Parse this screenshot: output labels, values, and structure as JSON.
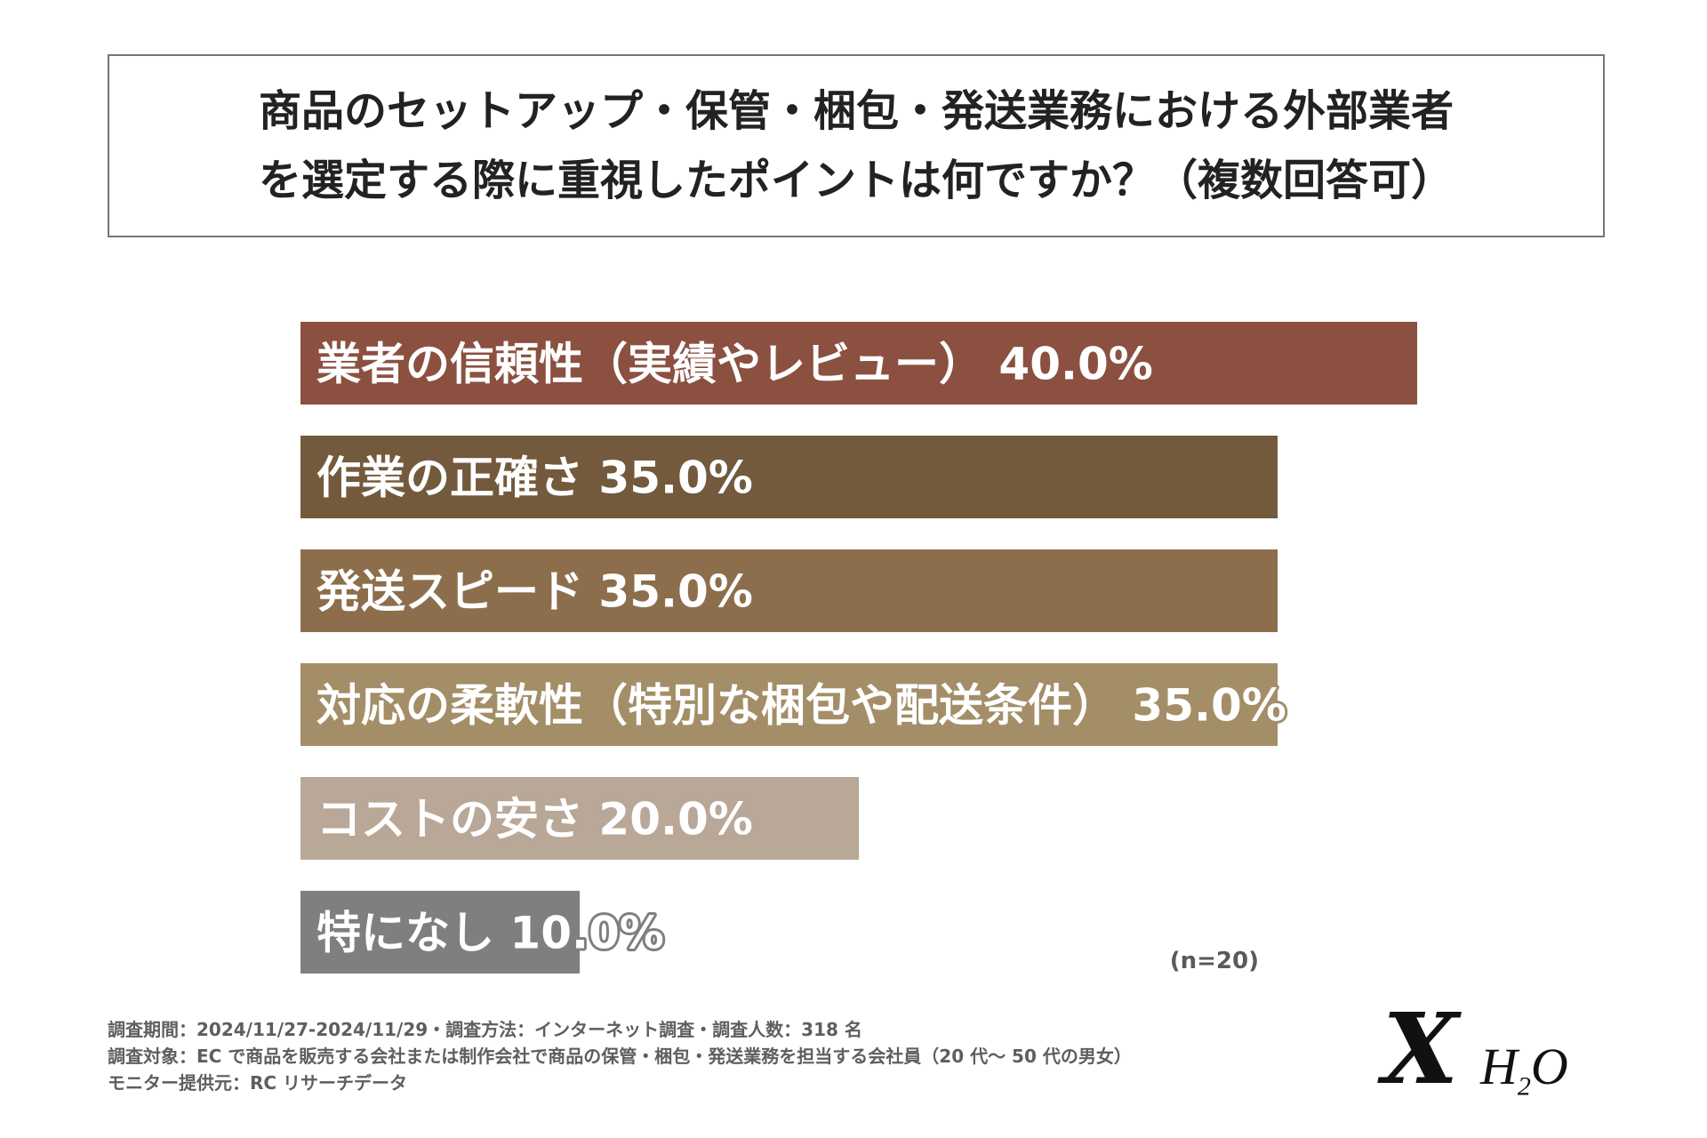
{
  "title": {
    "line1": "商品のセットアップ・保管・梱包・発送業務における外部業者",
    "line2": "を選定する際に重視したポイントは何ですか？（複数回答可）"
  },
  "chart_data": {
    "type": "bar",
    "orientation": "horizontal",
    "title": "商品のセットアップ・保管・梱包・発送業務における外部業者を選定する際に重視したポイントは何ですか？（複数回答可）",
    "categories": [
      "業者の信頼性（実績やレビュー）",
      "作業の正確さ",
      "発送スピード",
      "対応の柔軟性（特別な梱包や配送条件）",
      "コストの安さ",
      "特になし"
    ],
    "values": [
      40.0,
      35.0,
      35.0,
      35.0,
      20.0,
      10.0
    ],
    "value_labels": [
      "40.0%",
      "35.0%",
      "35.0%",
      "35.0%",
      "20.0%",
      "10.0%"
    ],
    "colors": [
      "#8b5040",
      "#735a3d",
      "#8c6e4c",
      "#a38e67",
      "#b9a797",
      "#7f7f7f"
    ],
    "xlim": [
      0,
      40
    ],
    "grid": false,
    "legend": "none"
  },
  "sample_note": "(n=20)",
  "footnotes": [
    "調査期間：2024/11/27-2024/11/29・調査方法：インターネット調査・調査人数：318 名",
    "調査対象：EC で商品を販売する会社または制作会社で商品の保管・梱包・発送業務を担当する会社員（20 代～ 50 代の男女）",
    "モニター提供元：RC リサーチデータ"
  ],
  "logo": {
    "mark": "X",
    "text": "H",
    "subscript": "2",
    "text_end": "O"
  }
}
